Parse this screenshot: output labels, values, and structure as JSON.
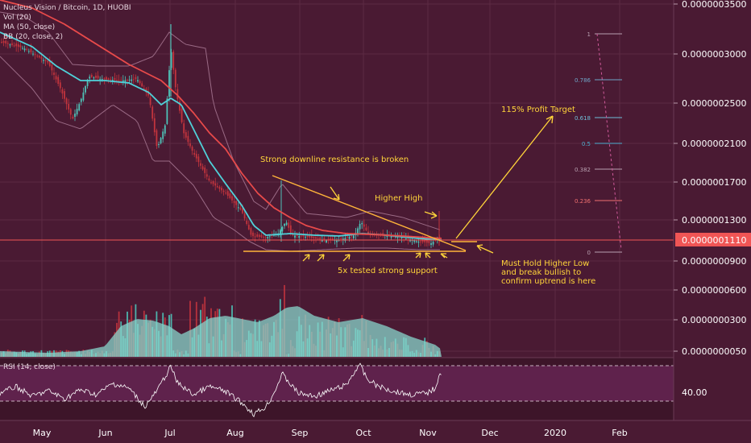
{
  "header": {
    "lines": [
      "Nucleus Vision / Bitcoin, 1D, HUOBI",
      "Vol (20)",
      "MA (50, close)",
      "BB (20, close, 2)"
    ]
  },
  "colors": {
    "background": "#4a1a33",
    "candle_up": "#4ec3b8",
    "candle_down": "#c2343d",
    "ma50": "#e84a4a",
    "bb_mid": "#4fd1d9",
    "bb_band": "#9a6a85",
    "volume_area": "#88d5cc",
    "annotation": "#ffd43a",
    "last_price_bg": "#f05555",
    "rsi_line": "#ffffff",
    "rsi_band": "#7c2d6a"
  },
  "price_axis": {
    "labels": [
      "0.0000003500",
      "0.0000003000",
      "0.0000002500",
      "0.0000002100",
      "0.0000001700",
      "0.0000001300",
      "0.0000000900",
      "0.0000000600",
      "0.0000000300",
      "0.0000000050"
    ],
    "last_price": "0.0000001110"
  },
  "time_axis": {
    "labels": [
      "May",
      "Jun",
      "Jul",
      "Aug",
      "Sep",
      "Oct",
      "Nov",
      "Dec",
      "2020",
      "Feb"
    ]
  },
  "rsi": {
    "label": "RSI (14, close)",
    "value_label": "40.00"
  },
  "fib_levels": [
    {
      "label": "1",
      "color": "#b8a0b0"
    },
    {
      "label": "0.786",
      "color": "#6fa5c8"
    },
    {
      "label": "0.618",
      "color": "#6fbfd8"
    },
    {
      "label": "0.5",
      "color": "#4fb0d0"
    },
    {
      "label": "0.382",
      "color": "#b8a0b0"
    },
    {
      "label": "0.236",
      "color": "#f07070"
    },
    {
      "label": "0",
      "color": "#b8a0b0"
    }
  ],
  "annotations": {
    "resistance": "Strong downline resistance is broken",
    "higher_high": "Higher High",
    "profit_target": "115% Profit Target",
    "support": "5x tested strong support",
    "hold_line1": "Must Hold Higher Low",
    "hold_line2": "and break bullish to",
    "hold_line3": "confirm uptrend is here"
  },
  "chart_data": {
    "type": "candlestick",
    "title": "Nucleus Vision / Bitcoin, 1D, HUOBI",
    "x": [
      "May",
      "Jun",
      "Jul",
      "Aug",
      "Sep",
      "Oct",
      "Nov"
    ],
    "close": [
      3.2e-07,
      2.7e-07,
      2.3e-07,
      1.1e-07,
      1e-07,
      1.1e-07,
      1.1e-07
    ],
    "ylim": [
      5e-09,
      3.5e-07
    ],
    "last_price": 1.11e-07,
    "support_level": 9.8e-08,
    "rsi_reference": 40
  }
}
